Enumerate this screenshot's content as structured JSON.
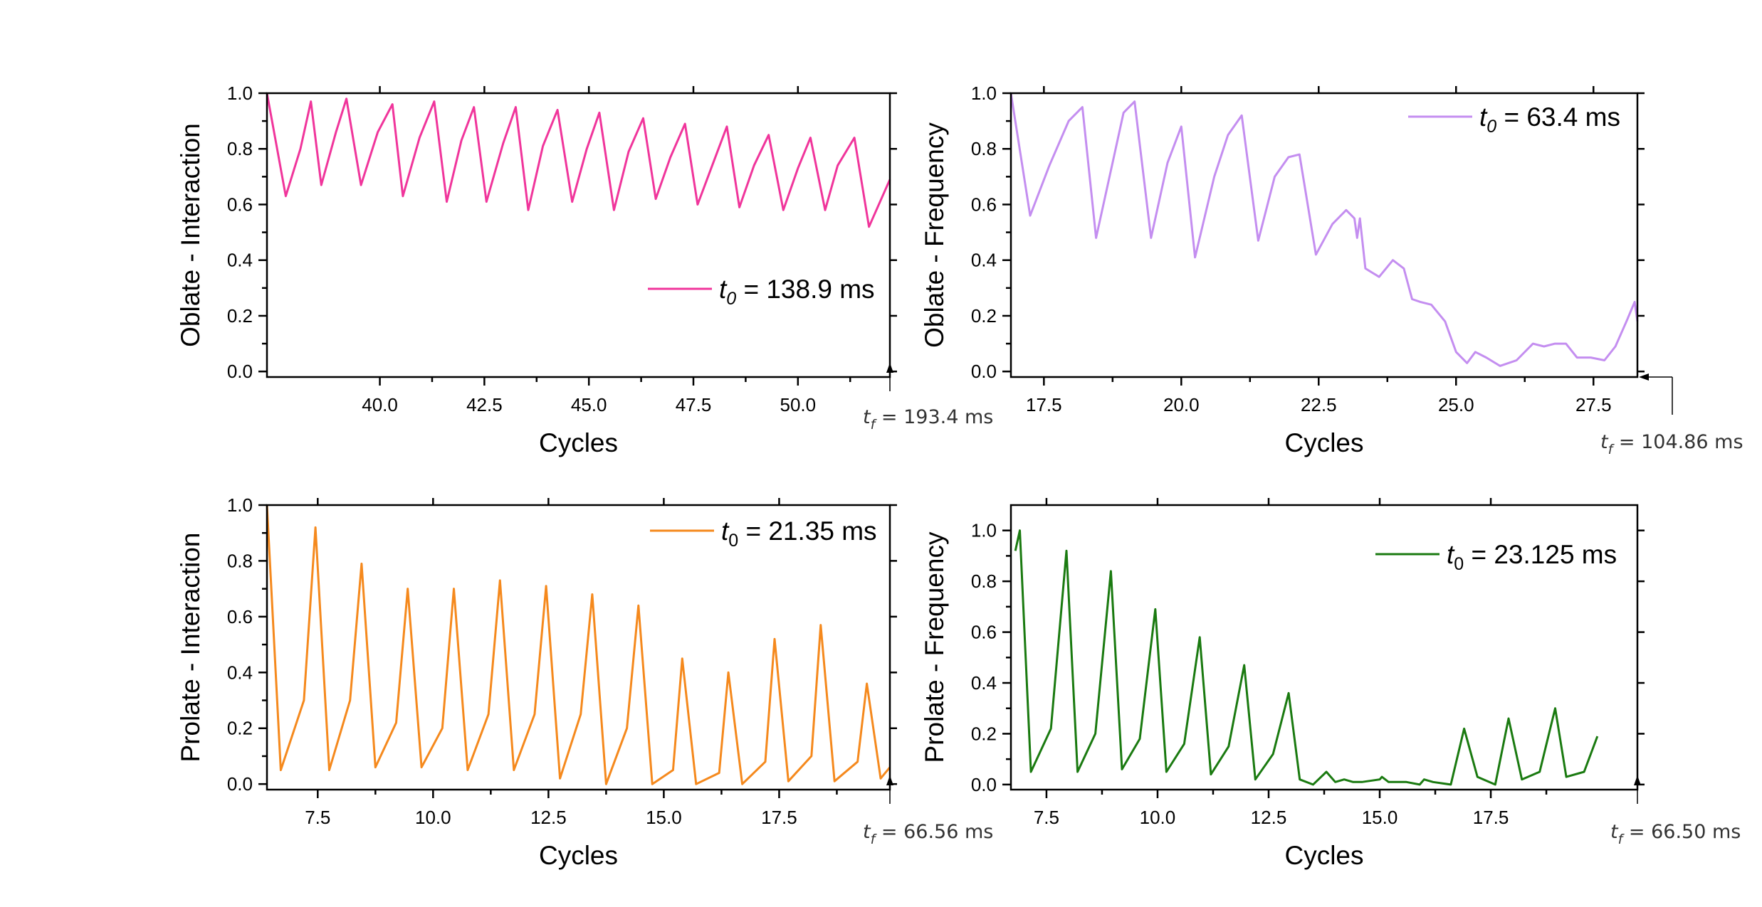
{
  "figure": {
    "background": "#ffffff"
  },
  "chart_data": [
    {
      "id": "oblate-interaction",
      "type": "line",
      "xlabel": "Cycles",
      "ylabel": "Oblate - Interaction",
      "xlim": [
        37.3,
        52.2
      ],
      "ylim": [
        -0.02,
        1.0
      ],
      "xticks": [
        "40.0",
        "42.5",
        "45.0",
        "47.5",
        "50.0"
      ],
      "xtick_values": [
        40.0,
        42.5,
        45.0,
        47.5,
        50.0
      ],
      "yticks": [
        "0.0",
        "0.2",
        "0.4",
        "0.6",
        "0.8",
        "1.0"
      ],
      "ytick_values": [
        0.0,
        0.2,
        0.4,
        0.6,
        0.8,
        1.0
      ],
      "legend": {
        "var": "t",
        "sub": "0",
        "value": " = 138.9 ms",
        "position": "middle-right"
      },
      "tf_annotation": {
        "var": "t",
        "sub": "f",
        "value": " = 193.4 ms"
      },
      "series": [
        {
          "name": "t0 = 138.9 ms",
          "color": "#f0359b",
          "x": [
            37.3,
            37.75,
            38.1,
            38.35,
            38.6,
            38.95,
            39.2,
            39.55,
            39.95,
            40.3,
            40.55,
            40.95,
            41.3,
            41.6,
            41.95,
            42.25,
            42.55,
            42.95,
            43.25,
            43.55,
            43.9,
            44.25,
            44.6,
            44.95,
            45.25,
            45.6,
            45.95,
            46.3,
            46.6,
            46.95,
            47.3,
            47.6,
            47.95,
            48.3,
            48.6,
            48.95,
            49.3,
            49.65,
            50.0,
            50.3,
            50.65,
            50.95,
            51.35,
            51.7,
            52.2
          ],
          "values": [
            1.0,
            0.63,
            0.8,
            0.97,
            0.67,
            0.86,
            0.98,
            0.67,
            0.86,
            0.96,
            0.63,
            0.84,
            0.97,
            0.61,
            0.83,
            0.95,
            0.61,
            0.82,
            0.95,
            0.58,
            0.81,
            0.94,
            0.61,
            0.8,
            0.93,
            0.58,
            0.79,
            0.91,
            0.62,
            0.77,
            0.89,
            0.6,
            0.74,
            0.88,
            0.59,
            0.74,
            0.85,
            0.58,
            0.73,
            0.84,
            0.58,
            0.74,
            0.84,
            0.52,
            0.69
          ]
        }
      ]
    },
    {
      "id": "oblate-frequency",
      "type": "line",
      "xlabel": "Cycles",
      "ylabel": "Oblate - Frequency",
      "xlim": [
        16.9,
        28.3
      ],
      "ylim": [
        -0.02,
        1.0
      ],
      "xticks": [
        "17.5",
        "20.0",
        "22.5",
        "25.0",
        "27.5"
      ],
      "xtick_values": [
        17.5,
        20.0,
        22.5,
        25.0,
        27.5
      ],
      "yticks": [
        "0.0",
        "0.2",
        "0.4",
        "0.6",
        "0.8",
        "1.0"
      ],
      "ytick_values": [
        0.0,
        0.2,
        0.4,
        0.6,
        0.8,
        1.0
      ],
      "legend": {
        "var": "t",
        "sub": "0",
        "value": " = 63.4 ms",
        "position": "top-right"
      },
      "tf_annotation": {
        "var": "t",
        "sub": "f",
        "value": " = 104.86 ms"
      },
      "series": [
        {
          "name": "t0 = 63.4 ms",
          "color": "#c48ef0",
          "x": [
            16.9,
            17.25,
            17.6,
            17.95,
            18.2,
            18.45,
            18.75,
            18.95,
            19.15,
            19.45,
            19.75,
            20.0,
            20.25,
            20.6,
            20.85,
            21.1,
            21.4,
            21.7,
            21.95,
            22.15,
            22.45,
            22.75,
            23.0,
            23.15,
            23.2,
            23.25,
            23.35,
            23.6,
            23.85,
            24.05,
            24.2,
            24.35,
            24.55,
            24.8,
            25.0,
            25.2,
            25.35,
            25.55,
            25.8,
            26.1,
            26.4,
            26.6,
            26.8,
            27.0,
            27.2,
            27.45,
            27.7,
            27.9,
            28.1,
            28.25,
            28.3
          ],
          "values": [
            1.0,
            0.56,
            0.74,
            0.9,
            0.95,
            0.48,
            0.75,
            0.93,
            0.97,
            0.48,
            0.75,
            0.88,
            0.41,
            0.7,
            0.85,
            0.92,
            0.47,
            0.7,
            0.77,
            0.78,
            0.42,
            0.53,
            0.58,
            0.55,
            0.48,
            0.55,
            0.37,
            0.34,
            0.4,
            0.37,
            0.26,
            0.25,
            0.24,
            0.18,
            0.07,
            0.03,
            0.07,
            0.05,
            0.02,
            0.04,
            0.1,
            0.09,
            0.1,
            0.1,
            0.05,
            0.05,
            0.04,
            0.09,
            0.18,
            0.25,
            0.18
          ]
        }
      ]
    },
    {
      "id": "prolate-interaction",
      "type": "line",
      "xlabel": "Cycles",
      "ylabel": "Prolate - Interaction",
      "xlim": [
        6.4,
        19.9
      ],
      "ylim": [
        -0.02,
        1.0
      ],
      "xticks": [
        "7.5",
        "10.0",
        "12.5",
        "15.0",
        "17.5"
      ],
      "xtick_values": [
        7.5,
        10.0,
        12.5,
        15.0,
        17.5
      ],
      "yticks": [
        "0.0",
        "0.2",
        "0.4",
        "0.6",
        "0.8",
        "1.0"
      ],
      "ytick_values": [
        0.0,
        0.2,
        0.4,
        0.6,
        0.8,
        1.0
      ],
      "legend": {
        "var": "t",
        "sub": "0",
        "value": " = 21.35 ms",
        "position": "top-right"
      },
      "tf_annotation": {
        "var": "t",
        "sub": "f",
        "value": " = 66.56 ms"
      },
      "series": [
        {
          "name": "t0 = 21.35 ms",
          "color": "#f5891d",
          "x": [
            6.4,
            6.7,
            7.2,
            7.45,
            7.75,
            8.2,
            8.45,
            8.75,
            9.2,
            9.45,
            9.75,
            10.2,
            10.45,
            10.75,
            11.2,
            11.45,
            11.75,
            12.2,
            12.45,
            12.75,
            13.2,
            13.45,
            13.75,
            14.2,
            14.45,
            14.75,
            15.2,
            15.4,
            15.7,
            16.2,
            16.4,
            16.7,
            17.2,
            17.4,
            17.7,
            18.2,
            18.4,
            18.7,
            19.2,
            19.4,
            19.7,
            19.9
          ],
          "values": [
            1.0,
            0.05,
            0.3,
            0.92,
            0.05,
            0.3,
            0.79,
            0.06,
            0.22,
            0.7,
            0.06,
            0.2,
            0.7,
            0.05,
            0.25,
            0.73,
            0.05,
            0.25,
            0.71,
            0.02,
            0.25,
            0.68,
            0.0,
            0.2,
            0.64,
            0.0,
            0.05,
            0.45,
            0.0,
            0.04,
            0.4,
            0.0,
            0.08,
            0.52,
            0.01,
            0.1,
            0.57,
            0.01,
            0.08,
            0.36,
            0.02,
            0.06
          ]
        }
      ]
    },
    {
      "id": "prolate-frequency",
      "type": "line",
      "xlabel": "Cycles",
      "ylabel": "Prolate - Frequency",
      "xlim": [
        6.7,
        20.8
      ],
      "ylim": [
        -0.02,
        1.1
      ],
      "xticks": [
        "7.5",
        "10.0",
        "12.5",
        "15.0",
        "17.5"
      ],
      "xtick_values": [
        7.5,
        10.0,
        12.5,
        15.0,
        17.5
      ],
      "yticks": [
        "0.0",
        "0.2",
        "0.4",
        "0.6",
        "0.8",
        "1.0"
      ],
      "ytick_values": [
        0.0,
        0.2,
        0.4,
        0.6,
        0.8,
        1.0
      ],
      "legend": {
        "var": "t",
        "sub": "0",
        "value": " = 23.125 ms",
        "position": "top-right"
      },
      "tf_annotation": {
        "var": "t",
        "sub": "f",
        "value": " = 66.50 ms"
      },
      "series": [
        {
          "name": "t0 = 23.125 ms",
          "color": "#1a7a10",
          "x": [
            6.8,
            6.9,
            7.15,
            7.6,
            7.95,
            8.2,
            8.6,
            8.95,
            9.2,
            9.6,
            9.95,
            10.2,
            10.6,
            10.95,
            11.2,
            11.6,
            11.95,
            12.2,
            12.6,
            12.95,
            13.2,
            13.5,
            13.8,
            14.0,
            14.2,
            14.4,
            14.6,
            15.0,
            15.05,
            15.2,
            15.6,
            15.9,
            16.0,
            16.2,
            16.6,
            16.9,
            17.2,
            17.6,
            17.9,
            18.2,
            18.6,
            18.95,
            19.2,
            19.6,
            19.9
          ],
          "values": [
            0.92,
            1.0,
            0.05,
            0.22,
            0.92,
            0.05,
            0.2,
            0.84,
            0.06,
            0.18,
            0.69,
            0.05,
            0.16,
            0.58,
            0.04,
            0.15,
            0.47,
            0.02,
            0.12,
            0.36,
            0.02,
            0.0,
            0.05,
            0.01,
            0.02,
            0.01,
            0.01,
            0.02,
            0.03,
            0.01,
            0.01,
            0.0,
            0.02,
            0.01,
            0.0,
            0.22,
            0.03,
            0.0,
            0.26,
            0.02,
            0.05,
            0.3,
            0.03,
            0.05,
            0.19
          ]
        }
      ]
    }
  ]
}
